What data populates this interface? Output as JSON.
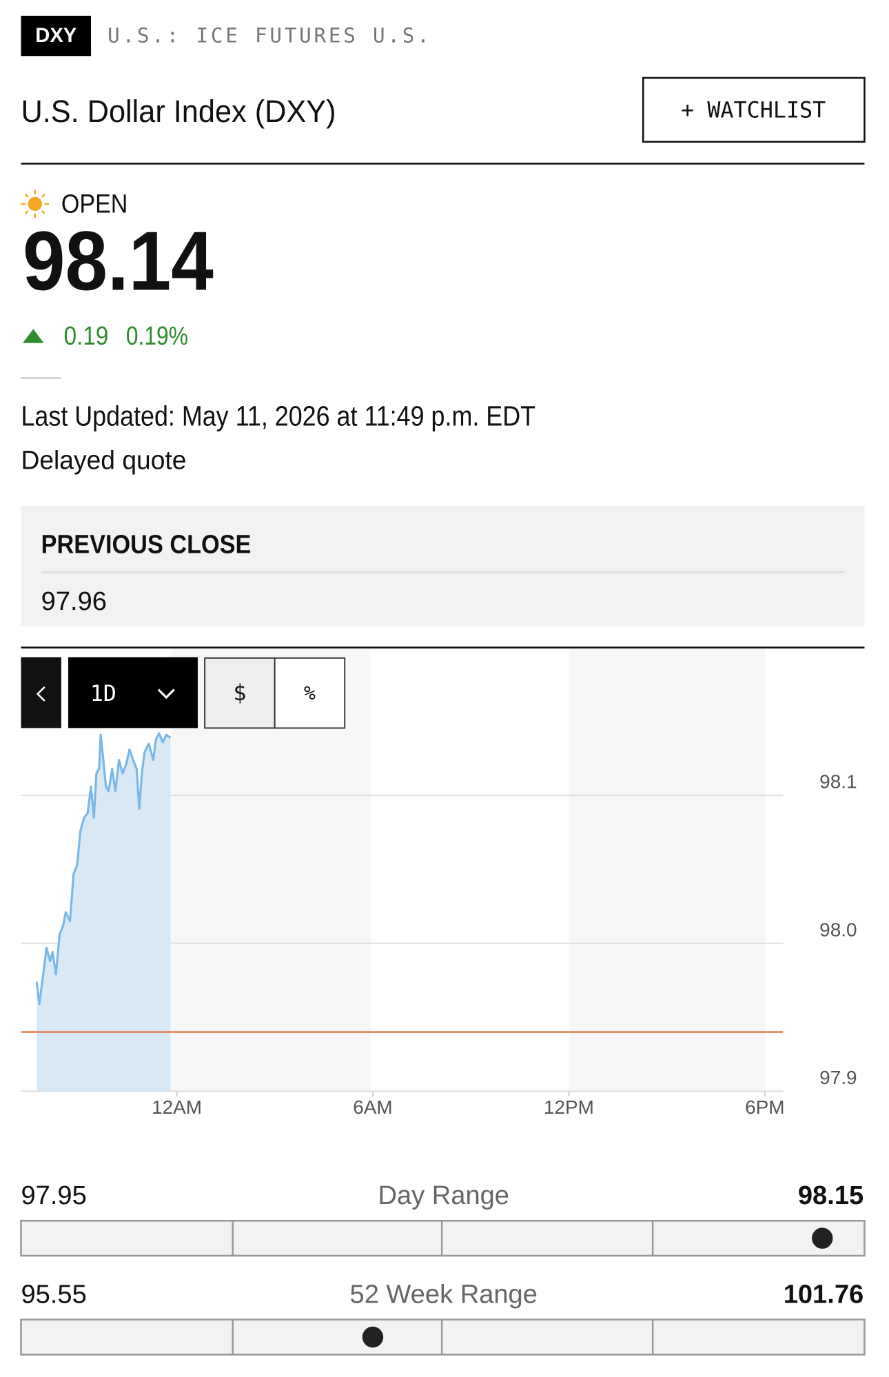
{
  "header": {
    "ticker": "DXY",
    "exchange": "U.S.: ICE FUTURES U.S.",
    "title": "U.S. Dollar Index (DXY)",
    "watchlist_button": "+ WATCHLIST"
  },
  "quote": {
    "status": "OPEN",
    "price": 98.14,
    "change": 0.19,
    "change_percent": "0.19%",
    "last_updated": "Last Updated: May 11, 2026 at 11:49 p.m. EDT",
    "delayed_note": "Delayed quote"
  },
  "previous_close": {
    "label": "PREVIOUS CLOSE",
    "value": 97.96
  },
  "chart_controls": {
    "period": "1D",
    "dollar": "$",
    "percent": "%"
  },
  "chart_data": {
    "type": "line",
    "color": "#7ab8e6",
    "fill": "#d8e9f5",
    "x": [
      -4.29,
      -4.21,
      -4.07,
      -3.99,
      -3.88,
      -3.8,
      -3.7,
      -3.59,
      -3.48,
      -3.4,
      -3.27,
      -3.16,
      -3.05,
      -2.95,
      -2.84,
      -2.73,
      -2.63,
      -2.54,
      -2.46,
      -2.38,
      -2.33,
      -2.25,
      -2.17,
      -2.09,
      -1.98,
      -1.88,
      -1.77,
      -1.66,
      -1.55,
      -1.45,
      -1.34,
      -1.23,
      -1.15,
      -1.07,
      -0.99,
      -0.86,
      -0.72,
      -0.64,
      -0.54,
      -0.43,
      -0.32,
      -0.19
    ],
    "values": [
      97.974,
      97.959,
      97.982,
      97.997,
      97.988,
      97.994,
      97.979,
      98.006,
      98.012,
      98.021,
      98.015,
      98.047,
      98.053,
      98.076,
      98.085,
      98.088,
      98.106,
      98.085,
      98.115,
      98.118,
      98.141,
      98.124,
      98.106,
      98.103,
      98.118,
      98.103,
      98.124,
      98.115,
      98.121,
      98.131,
      98.124,
      98.118,
      98.091,
      98.115,
      98.129,
      98.135,
      98.124,
      98.138,
      98.142,
      98.136,
      98.141,
      98.139
    ],
    "xlim": [
      -4.77,
      18.56
    ],
    "ylim": [
      97.9,
      98.2
    ],
    "xticks": [
      {
        "value": 0,
        "label": "12AM"
      },
      {
        "value": 6,
        "label": "6AM"
      },
      {
        "value": 12,
        "label": "12PM"
      },
      {
        "value": 18,
        "label": "6PM"
      }
    ],
    "yticks": [
      97.9,
      {
        "value": 98,
        "label": "98.0"
      },
      98.1
    ],
    "baseline": 97.94,
    "baseline_color": "#e07b4b",
    "grid": true
  },
  "day_range": {
    "low": 97.95,
    "label": "Day Range",
    "high": 98.15
  },
  "week52_range": {
    "low": 95.55,
    "label": "52 Week Range",
    "high": 101.76
  }
}
